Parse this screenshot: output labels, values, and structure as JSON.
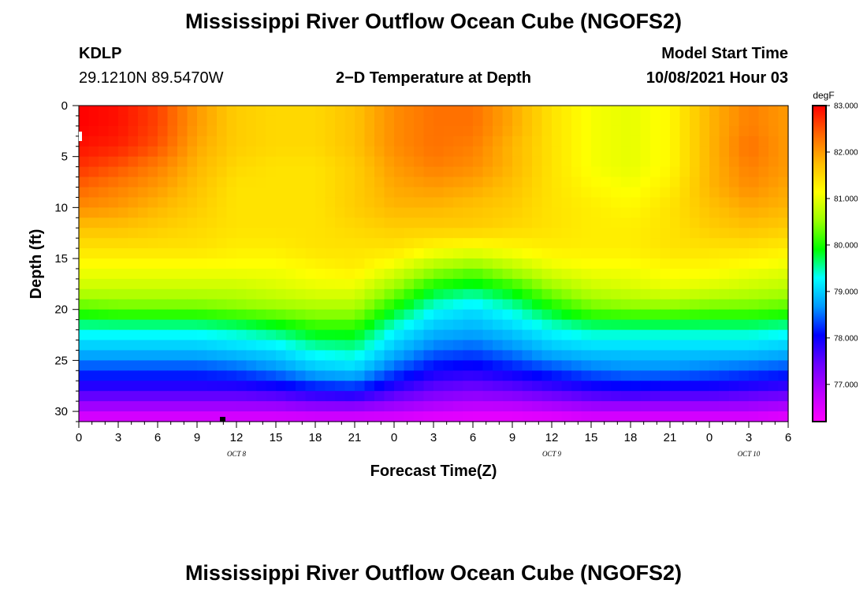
{
  "figure": {
    "title_top": "Mississippi River Outflow Ocean Cube (NGOFS2)",
    "title_bottom": "Mississippi River Outflow Ocean Cube (NGOFS2)",
    "station_id": "KDLP",
    "station_coords": "29.1210N  89.5470W",
    "plot_title": "2−D Temperature at Depth",
    "model_start_label": "Model Start Time",
    "model_start_value": "10/08/2021 Hour 03"
  },
  "chart_data": {
    "type": "heatmap",
    "title": "2−D Temperature at Depth",
    "xlabel": "Forecast Time(Z)",
    "ylabel": "Depth (ft)",
    "x_unit": "hours since 00Z Oct 8 2021",
    "xlim": [
      0,
      54
    ],
    "ylim": [
      31,
      0
    ],
    "x_ticks": [
      {
        "value": 0,
        "label": "0"
      },
      {
        "value": 3,
        "label": "3"
      },
      {
        "value": 6,
        "label": "6"
      },
      {
        "value": 9,
        "label": "9"
      },
      {
        "value": 12,
        "label": "12"
      },
      {
        "value": 15,
        "label": "15"
      },
      {
        "value": 18,
        "label": "18"
      },
      {
        "value": 21,
        "label": "21"
      },
      {
        "value": 24,
        "label": "0"
      },
      {
        "value": 27,
        "label": "3"
      },
      {
        "value": 30,
        "label": "6"
      },
      {
        "value": 33,
        "label": "9"
      },
      {
        "value": 36,
        "label": "12"
      },
      {
        "value": 39,
        "label": "15"
      },
      {
        "value": 42,
        "label": "18"
      },
      {
        "value": 45,
        "label": "21"
      },
      {
        "value": 48,
        "label": "0"
      },
      {
        "value": 51,
        "label": "3"
      },
      {
        "value": 54,
        "label": "6"
      }
    ],
    "y_ticks": [
      0,
      5,
      10,
      15,
      20,
      25,
      30
    ],
    "date_labels": [
      {
        "value": 12,
        "label": "OCT 8"
      },
      {
        "value": 36,
        "label": "OCT 9"
      },
      {
        "value": 51,
        "label": "OCT 10"
      }
    ],
    "colorbar": {
      "unit": "degF",
      "range": [
        76.2,
        83.0
      ],
      "ticks": [
        "83.000",
        "82.000",
        "81.000",
        "80.000",
        "79.000",
        "78.000",
        "77.000"
      ],
      "colors": [
        "#ff00ff",
        "#bb00ff",
        "#6a00ff",
        "#0000ff",
        "#0099ff",
        "#00ffff",
        "#00ff00",
        "#99ff00",
        "#ffff00",
        "#ffbb00",
        "#ff6600",
        "#ff0000"
      ]
    },
    "depths_ft": [
      0,
      2,
      4,
      6,
      8,
      10,
      12,
      14,
      16,
      18,
      20,
      22,
      24,
      26,
      28,
      30,
      31
    ],
    "times_h": [
      0,
      3,
      6,
      9,
      12,
      15,
      18,
      21,
      24,
      27,
      30,
      33,
      36,
      39,
      42,
      45,
      48,
      51,
      54
    ],
    "temperature_degF": [
      [
        83.0,
        82.9,
        82.6,
        82.0,
        81.6,
        81.5,
        81.5,
        81.7,
        82.1,
        82.3,
        82.3,
        81.9,
        81.4,
        81.1,
        81.0,
        81.2,
        81.8,
        82.2,
        82.0
      ],
      [
        83.0,
        82.9,
        82.6,
        82.0,
        81.6,
        81.5,
        81.5,
        81.7,
        82.1,
        82.3,
        82.3,
        81.9,
        81.4,
        81.1,
        81.0,
        81.2,
        81.8,
        82.2,
        82.0
      ],
      [
        82.9,
        82.8,
        82.5,
        81.9,
        81.6,
        81.5,
        81.5,
        81.7,
        82.1,
        82.3,
        82.2,
        81.8,
        81.4,
        81.1,
        81.0,
        81.2,
        81.8,
        82.3,
        82.0
      ],
      [
        82.7,
        82.5,
        82.2,
        81.8,
        81.5,
        81.4,
        81.4,
        81.6,
        82.0,
        82.2,
        82.1,
        81.8,
        81.4,
        81.1,
        81.0,
        81.2,
        81.8,
        82.2,
        82.0
      ],
      [
        82.4,
        82.2,
        82.0,
        81.7,
        81.4,
        81.4,
        81.4,
        81.6,
        81.9,
        82.0,
        81.9,
        81.7,
        81.4,
        81.2,
        81.1,
        81.3,
        81.8,
        82.1,
        81.9
      ],
      [
        82.1,
        82.0,
        81.8,
        81.6,
        81.4,
        81.4,
        81.4,
        81.6,
        81.8,
        81.8,
        81.7,
        81.6,
        81.4,
        81.3,
        81.2,
        81.4,
        81.7,
        81.9,
        81.8
      ],
      [
        81.7,
        81.7,
        81.6,
        81.5,
        81.4,
        81.4,
        81.4,
        81.5,
        81.6,
        81.6,
        81.6,
        81.5,
        81.4,
        81.3,
        81.3,
        81.4,
        81.6,
        81.7,
        81.6
      ],
      [
        81.4,
        81.4,
        81.4,
        81.4,
        81.3,
        81.3,
        81.4,
        81.4,
        81.4,
        81.2,
        81.1,
        81.2,
        81.3,
        81.3,
        81.3,
        81.4,
        81.4,
        81.4,
        81.3
      ],
      [
        81.1,
        81.1,
        81.1,
        81.1,
        81.1,
        81.1,
        81.2,
        81.3,
        81.0,
        80.6,
        80.4,
        80.7,
        81.0,
        81.1,
        81.1,
        81.2,
        81.2,
        81.1,
        81.0
      ],
      [
        80.8,
        80.8,
        80.8,
        80.8,
        80.8,
        80.9,
        81.0,
        81.0,
        80.5,
        79.9,
        79.7,
        80.0,
        80.5,
        80.8,
        80.9,
        81.0,
        80.9,
        80.8,
        80.7
      ],
      [
        80.2,
        80.3,
        80.3,
        80.3,
        80.4,
        80.5,
        80.6,
        80.6,
        79.9,
        79.3,
        79.1,
        79.4,
        79.9,
        80.3,
        80.4,
        80.4,
        80.3,
        80.3,
        80.2
      ],
      [
        79.4,
        79.4,
        79.4,
        79.4,
        79.5,
        79.7,
        80.0,
        80.0,
        79.3,
        78.9,
        78.8,
        79.0,
        79.3,
        79.5,
        79.5,
        79.5,
        79.5,
        79.5,
        79.4
      ],
      [
        78.9,
        78.9,
        78.9,
        78.9,
        79.0,
        79.1,
        79.4,
        79.5,
        78.9,
        78.5,
        78.4,
        78.6,
        78.9,
        79.0,
        79.0,
        79.0,
        79.0,
        79.0,
        78.9
      ],
      [
        78.3,
        78.3,
        78.3,
        78.3,
        78.4,
        78.6,
        78.9,
        79.0,
        78.4,
        78.0,
        77.9,
        78.1,
        78.3,
        78.5,
        78.6,
        78.6,
        78.5,
        78.4,
        78.3
      ],
      [
        77.7,
        77.7,
        77.7,
        77.7,
        77.7,
        77.8,
        78.0,
        78.1,
        77.7,
        77.4,
        77.3,
        77.4,
        77.6,
        77.8,
        77.9,
        77.8,
        77.8,
        77.7,
        77.6
      ],
      [
        76.8,
        76.8,
        76.8,
        76.8,
        76.8,
        76.8,
        76.9,
        76.9,
        76.8,
        76.7,
        76.6,
        76.6,
        76.7,
        76.8,
        76.8,
        76.8,
        76.8,
        76.8,
        76.7
      ],
      [
        76.4,
        76.4,
        76.4,
        76.4,
        76.4,
        76.4,
        76.4,
        76.4,
        76.4,
        76.3,
        76.3,
        76.3,
        76.3,
        76.4,
        76.4,
        76.4,
        76.4,
        76.4,
        76.3
      ]
    ]
  }
}
